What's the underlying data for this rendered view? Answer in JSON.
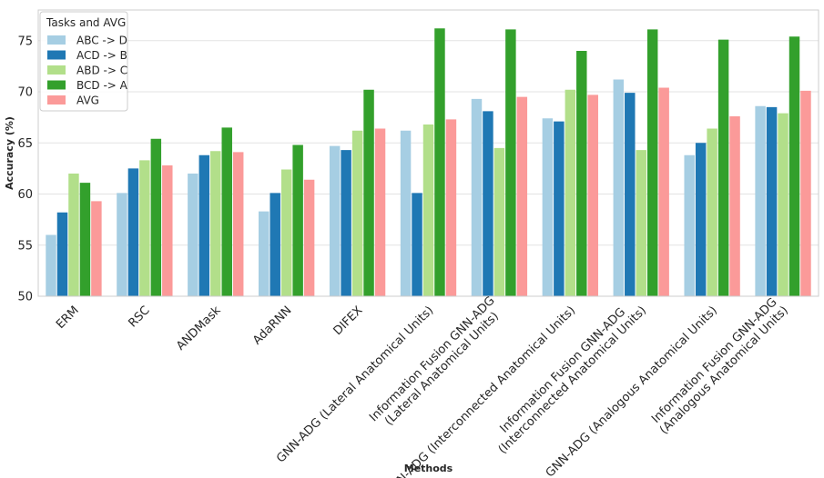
{
  "chart_data": {
    "type": "bar",
    "xlabel": "Methods",
    "ylabel": "Accuracy (%)",
    "ylim": [
      50,
      78
    ],
    "yticks": [
      50,
      55,
      60,
      65,
      70,
      75
    ],
    "grid": true,
    "legend": {
      "title": "Tasks and AVG",
      "placement": "top-left"
    },
    "categories": [
      [
        "ERM"
      ],
      [
        "RSC"
      ],
      [
        "ANDMask"
      ],
      [
        "AdaRNN"
      ],
      [
        "DIFEX"
      ],
      [
        "GNN-ADG (Lateral Anatomical Units)"
      ],
      [
        "Information Fusion GNN-ADG",
        "(Lateral Anatomical Units)"
      ],
      [
        "GNN-ADG (Interconnected Anatomical Units)"
      ],
      [
        "Information Fusion GNN-ADG",
        "(Interconnected Anatomical Units)"
      ],
      [
        "GNN-ADG (Analogous Anatomical Units)"
      ],
      [
        "Information Fusion GNN-ADG",
        "(Analogous Anatomical Units)"
      ]
    ],
    "series": [
      {
        "name": "ABC -> D",
        "color": "#a6cee3",
        "values": [
          56.0,
          60.1,
          62.0,
          58.3,
          64.7,
          66.2,
          69.3,
          67.4,
          71.2,
          63.8,
          68.6
        ]
      },
      {
        "name": "ACD -> B",
        "color": "#1f78b4",
        "values": [
          58.2,
          62.5,
          63.8,
          60.1,
          64.3,
          60.1,
          68.1,
          67.1,
          69.9,
          65.0,
          68.5
        ]
      },
      {
        "name": "ABD -> C",
        "color": "#b2df8a",
        "values": [
          62.0,
          63.3,
          64.2,
          62.4,
          66.2,
          66.8,
          64.5,
          70.2,
          64.3,
          66.4,
          67.9
        ]
      },
      {
        "name": "BCD -> A",
        "color": "#33a02c",
        "values": [
          61.1,
          65.4,
          66.5,
          64.8,
          70.2,
          76.2,
          76.1,
          74.0,
          76.1,
          75.1,
          75.4
        ]
      },
      {
        "name": "AVG",
        "color": "#fb9a99",
        "values": [
          59.3,
          62.8,
          64.1,
          61.4,
          66.4,
          67.3,
          69.5,
          69.7,
          70.4,
          67.6,
          70.1
        ]
      }
    ]
  }
}
